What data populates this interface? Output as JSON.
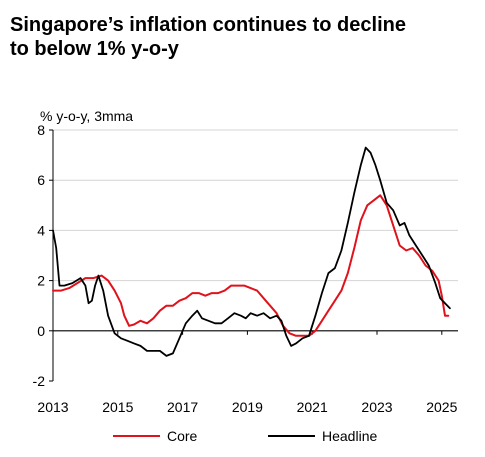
{
  "chart_data": {
    "type": "line",
    "title_lines": [
      "Singapore’s inflation continues to decline",
      "to below 1% y-o-y"
    ],
    "ylabel": "% y-o-y, 3mma",
    "xlabel": "",
    "ylim": [
      -2,
      8
    ],
    "xlim": [
      2013.0,
      2025.5
    ],
    "y_ticks": [
      -2,
      0,
      2,
      4,
      6,
      8
    ],
    "x_ticks": [
      2013,
      2015,
      2017,
      2019,
      2021,
      2023,
      2025
    ],
    "x_tick_labels": [
      "2013",
      "2015",
      "2017",
      "2019",
      "2021",
      "2023",
      "2025"
    ],
    "grid": "horizontal",
    "legend_position": "bottom",
    "series": [
      {
        "name": "Core",
        "color": "#e0121b",
        "points": [
          [
            2013.0,
            1.6
          ],
          [
            2013.25,
            1.6
          ],
          [
            2013.5,
            1.7
          ],
          [
            2013.75,
            1.9
          ],
          [
            2014.0,
            2.1
          ],
          [
            2014.25,
            2.1
          ],
          [
            2014.5,
            2.2
          ],
          [
            2014.7,
            2.0
          ],
          [
            2014.9,
            1.6
          ],
          [
            2015.1,
            1.1
          ],
          [
            2015.2,
            0.6
          ],
          [
            2015.35,
            0.2
          ],
          [
            2015.5,
            0.25
          ],
          [
            2015.7,
            0.4
          ],
          [
            2015.9,
            0.3
          ],
          [
            2016.1,
            0.5
          ],
          [
            2016.3,
            0.8
          ],
          [
            2016.5,
            1.0
          ],
          [
            2016.7,
            1.0
          ],
          [
            2016.9,
            1.2
          ],
          [
            2017.1,
            1.3
          ],
          [
            2017.3,
            1.5
          ],
          [
            2017.5,
            1.5
          ],
          [
            2017.7,
            1.4
          ],
          [
            2017.9,
            1.5
          ],
          [
            2018.1,
            1.5
          ],
          [
            2018.3,
            1.6
          ],
          [
            2018.5,
            1.8
          ],
          [
            2018.7,
            1.8
          ],
          [
            2018.9,
            1.8
          ],
          [
            2019.1,
            1.7
          ],
          [
            2019.3,
            1.6
          ],
          [
            2019.5,
            1.3
          ],
          [
            2019.7,
            1.0
          ],
          [
            2019.9,
            0.7
          ],
          [
            2020.1,
            0.2
          ],
          [
            2020.3,
            -0.1
          ],
          [
            2020.5,
            -0.2
          ],
          [
            2020.7,
            -0.2
          ],
          [
            2020.9,
            -0.2
          ],
          [
            2021.1,
            0.0
          ],
          [
            2021.3,
            0.4
          ],
          [
            2021.5,
            0.8
          ],
          [
            2021.7,
            1.2
          ],
          [
            2021.9,
            1.6
          ],
          [
            2022.1,
            2.3
          ],
          [
            2022.3,
            3.3
          ],
          [
            2022.5,
            4.4
          ],
          [
            2022.7,
            5.0
          ],
          [
            2022.9,
            5.2
          ],
          [
            2023.0,
            5.3
          ],
          [
            2023.1,
            5.4
          ],
          [
            2023.2,
            5.2
          ],
          [
            2023.3,
            5.0
          ],
          [
            2023.5,
            4.2
          ],
          [
            2023.7,
            3.4
          ],
          [
            2023.9,
            3.2
          ],
          [
            2024.1,
            3.3
          ],
          [
            2024.3,
            3.0
          ],
          [
            2024.5,
            2.6
          ],
          [
            2024.7,
            2.4
          ],
          [
            2024.9,
            2.0
          ],
          [
            2025.0,
            1.4
          ],
          [
            2025.1,
            0.6
          ],
          [
            2025.2,
            0.6
          ]
        ]
      },
      {
        "name": "Headline",
        "color": "#000000",
        "points": [
          [
            2013.0,
            4.0
          ],
          [
            2013.1,
            3.3
          ],
          [
            2013.2,
            1.8
          ],
          [
            2013.35,
            1.8
          ],
          [
            2013.6,
            1.9
          ],
          [
            2013.85,
            2.1
          ],
          [
            2014.0,
            1.8
          ],
          [
            2014.1,
            1.1
          ],
          [
            2014.2,
            1.2
          ],
          [
            2014.3,
            1.8
          ],
          [
            2014.4,
            2.2
          ],
          [
            2014.55,
            1.6
          ],
          [
            2014.7,
            0.6
          ],
          [
            2014.9,
            -0.1
          ],
          [
            2015.1,
            -0.3
          ],
          [
            2015.3,
            -0.4
          ],
          [
            2015.5,
            -0.5
          ],
          [
            2015.7,
            -0.6
          ],
          [
            2015.9,
            -0.8
          ],
          [
            2016.1,
            -0.8
          ],
          [
            2016.3,
            -0.8
          ],
          [
            2016.5,
            -1.0
          ],
          [
            2016.7,
            -0.9
          ],
          [
            2016.9,
            -0.3
          ],
          [
            2017.1,
            0.3
          ],
          [
            2017.3,
            0.6
          ],
          [
            2017.45,
            0.8
          ],
          [
            2017.6,
            0.5
          ],
          [
            2017.8,
            0.4
          ],
          [
            2018.0,
            0.3
          ],
          [
            2018.2,
            0.3
          ],
          [
            2018.4,
            0.5
          ],
          [
            2018.6,
            0.7
          ],
          [
            2018.8,
            0.6
          ],
          [
            2018.95,
            0.5
          ],
          [
            2019.1,
            0.7
          ],
          [
            2019.3,
            0.6
          ],
          [
            2019.5,
            0.7
          ],
          [
            2019.7,
            0.5
          ],
          [
            2019.9,
            0.6
          ],
          [
            2020.05,
            0.4
          ],
          [
            2020.2,
            -0.2
          ],
          [
            2020.35,
            -0.6
          ],
          [
            2020.5,
            -0.5
          ],
          [
            2020.7,
            -0.3
          ],
          [
            2020.9,
            -0.2
          ],
          [
            2021.1,
            0.6
          ],
          [
            2021.3,
            1.5
          ],
          [
            2021.5,
            2.3
          ],
          [
            2021.7,
            2.5
          ],
          [
            2021.9,
            3.2
          ],
          [
            2022.1,
            4.3
          ],
          [
            2022.3,
            5.5
          ],
          [
            2022.5,
            6.6
          ],
          [
            2022.65,
            7.3
          ],
          [
            2022.8,
            7.1
          ],
          [
            2022.95,
            6.6
          ],
          [
            2023.1,
            6.0
          ],
          [
            2023.3,
            5.1
          ],
          [
            2023.5,
            4.8
          ],
          [
            2023.7,
            4.2
          ],
          [
            2023.85,
            4.3
          ],
          [
            2024.0,
            3.8
          ],
          [
            2024.2,
            3.4
          ],
          [
            2024.4,
            3.0
          ],
          [
            2024.6,
            2.6
          ],
          [
            2024.8,
            1.9
          ],
          [
            2024.95,
            1.3
          ],
          [
            2025.1,
            1.1
          ],
          [
            2025.25,
            0.9
          ]
        ]
      }
    ]
  }
}
